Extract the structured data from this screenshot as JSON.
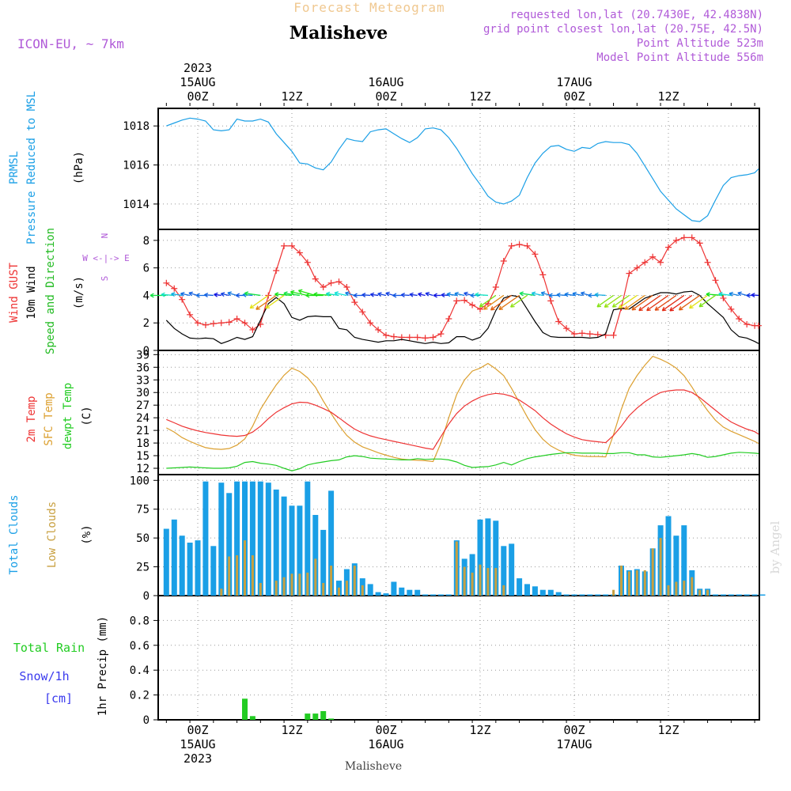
{
  "header": {
    "title_top": "Forecast Meteogram",
    "place": "Malisheve",
    "model": "ICON-EU, ~ 7km",
    "meta_lines": [
      "requested lon,lat (20.7430E, 42.4838N)",
      "grid point closest lon,lat (20.75E, 42.5N)",
      "Point Altitude 523m",
      "Model Point Altitude 556m"
    ],
    "bottom_label": "Malisheve",
    "watermark": "by Angel"
  },
  "time_axis": {
    "top_labels": [
      {
        "lines": [
          "2023",
          "15AUG",
          "00Z"
        ],
        "hour": 0
      },
      {
        "lines": [
          "12Z"
        ],
        "hour": 12
      },
      {
        "lines": [
          "16AUG",
          "00Z"
        ],
        "hour": 24
      },
      {
        "lines": [
          "12Z"
        ],
        "hour": 36
      },
      {
        "lines": [
          "17AUG",
          "00Z"
        ],
        "hour": 48
      },
      {
        "lines": [
          "12Z"
        ],
        "hour": 60
      }
    ],
    "bottom_labels": [
      {
        "lines": [
          "00Z",
          "15AUG",
          "2023"
        ],
        "hour": 0
      },
      {
        "lines": [
          "12Z"
        ],
        "hour": 12
      },
      {
        "lines": [
          "00Z",
          "16AUG"
        ],
        "hour": 24
      },
      {
        "lines": [
          "12Z"
        ],
        "hour": 36
      },
      {
        "lines": [
          "00Z",
          "17AUG"
        ],
        "hour": 48
      },
      {
        "lines": [
          "12Z"
        ],
        "hour": 60
      }
    ]
  },
  "colors": {
    "pressure": "#1a9fe6",
    "gust": "#ee3333",
    "wind": "#000000",
    "direction": "#22bb22",
    "temp2m": "#ee3333",
    "sfc": "#dca030",
    "dew": "#22cc22",
    "total_clouds": "#1a9fe6",
    "low_clouds": "#c8a040",
    "rain": "#22cc22",
    "snow": "#3a3aee",
    "meta": "#b05ad8",
    "title_top": "#f0c890",
    "watermark": "#d8d8d8"
  },
  "chart_data": [
    {
      "type": "line",
      "name": "pressure",
      "labels": [
        "PRMSL",
        "Pressure Reduced to MSL",
        "(hPa)"
      ],
      "y_ticks": [
        "1014",
        "1016",
        "1018"
      ],
      "ylim": [
        1012.7,
        1018.9
      ],
      "grid": true,
      "x": [
        -4,
        -3,
        -2,
        -1,
        0,
        1,
        2,
        3,
        4,
        5,
        6,
        7,
        8,
        9,
        10,
        11,
        12,
        13,
        14,
        15,
        16,
        17,
        18,
        19,
        20,
        21,
        22,
        23,
        24,
        25,
        26,
        27,
        28,
        29,
        30,
        31,
        32,
        33,
        34,
        35,
        36,
        37,
        38,
        39,
        40,
        41,
        42,
        43,
        44,
        45,
        46,
        47,
        48,
        49,
        50,
        51,
        52,
        53,
        54,
        55,
        56,
        57,
        58,
        59,
        60,
        61,
        62,
        63,
        64,
        65,
        66,
        67,
        68,
        69,
        70,
        71,
        72
      ],
      "series": [
        {
          "values": [
            1018.0,
            1018.15,
            1018.3,
            1018.4,
            1018.35,
            1018.25,
            1017.8,
            1017.75,
            1017.8,
            1018.35,
            1018.25,
            1018.25,
            1018.35,
            1018.2,
            1017.6,
            1017.15,
            1016.7,
            1016.1,
            1016.05,
            1015.85,
            1015.75,
            1016.15,
            1016.8,
            1017.35,
            1017.25,
            1017.2,
            1017.7,
            1017.8,
            1017.85,
            1017.6,
            1017.35,
            1017.15,
            1017.4,
            1017.85,
            1017.9,
            1017.8,
            1017.4,
            1016.85,
            1016.2,
            1015.55,
            1015.0,
            1014.4,
            1014.1,
            1014.0,
            1014.15,
            1014.45,
            1015.35,
            1016.1,
            1016.6,
            1016.95,
            1017.0,
            1016.8,
            1016.7,
            1016.9,
            1016.85,
            1017.1,
            1017.2,
            1017.15,
            1017.15,
            1017.05,
            1016.6,
            1015.95,
            1015.3,
            1014.65,
            1014.2,
            1013.75,
            1013.45,
            1013.15,
            1013.1,
            1013.4,
            1014.2,
            1014.95,
            1015.35,
            1015.45,
            1015.5,
            1015.6,
            1015.8
          ]
        }
      ]
    },
    {
      "type": "line",
      "name": "wind",
      "labels": [
        "Wind GUST",
        "10m Wind",
        "Speed and Direction",
        "(m/s)"
      ],
      "compass": [
        "N",
        "W <-|-> E",
        "S"
      ],
      "y_ticks": [
        "0",
        "2",
        "4",
        "6",
        "8"
      ],
      "ylim": [
        0,
        8.8
      ],
      "grid": true,
      "x": [
        -4,
        -3,
        -2,
        -1,
        0,
        1,
        2,
        3,
        4,
        5,
        6,
        7,
        8,
        9,
        10,
        11,
        12,
        13,
        14,
        15,
        16,
        17,
        18,
        19,
        20,
        21,
        22,
        23,
        24,
        25,
        26,
        27,
        28,
        29,
        30,
        31,
        32,
        33,
        34,
        35,
        36,
        37,
        38,
        39,
        40,
        41,
        42,
        43,
        44,
        45,
        46,
        47,
        48,
        49,
        50,
        51,
        52,
        53,
        54,
        55,
        56,
        57,
        58,
        59,
        60,
        61,
        62,
        63,
        64,
        65,
        66,
        67,
        68,
        69,
        70,
        71,
        72
      ],
      "series": [
        {
          "name": "Wind GUST",
          "values": [
            4.9,
            4.5,
            3.7,
            2.6,
            2.0,
            1.85,
            1.95,
            2.0,
            2.05,
            2.3,
            2.0,
            1.5,
            1.9,
            4.0,
            5.8,
            7.6,
            7.6,
            7.1,
            6.4,
            5.2,
            4.6,
            4.9,
            5.0,
            4.6,
            3.5,
            2.8,
            2.0,
            1.5,
            1.1,
            1.0,
            0.95,
            0.95,
            0.95,
            0.9,
            0.95,
            1.2,
            2.3,
            3.6,
            3.65,
            3.3,
            3.0,
            3.4,
            4.6,
            6.5,
            7.6,
            7.7,
            7.6,
            7.0,
            5.5,
            3.6,
            2.1,
            1.6,
            1.2,
            1.25,
            1.2,
            1.15,
            1.1,
            1.1,
            3.1,
            5.6,
            6.0,
            6.4,
            6.8,
            6.4,
            7.5,
            8.0,
            8.2,
            8.2,
            7.8,
            6.4,
            5.1,
            3.8,
            3.0,
            2.3,
            1.9,
            1.8,
            1.8
          ]
        },
        {
          "name": "10m Wind",
          "values": [
            2.2,
            1.6,
            1.2,
            0.9,
            0.85,
            0.9,
            0.85,
            0.5,
            0.7,
            0.95,
            0.8,
            1.0,
            2.2,
            3.4,
            3.85,
            3.4,
            2.4,
            2.2,
            2.45,
            2.5,
            2.45,
            2.45,
            1.6,
            1.5,
            0.95,
            0.8,
            0.7,
            0.6,
            0.7,
            0.7,
            0.8,
            0.7,
            0.6,
            0.5,
            0.6,
            0.5,
            0.55,
            1.0,
            1.0,
            0.75,
            0.95,
            1.6,
            2.9,
            3.8,
            4.0,
            3.9,
            3.0,
            2.1,
            1.3,
            1.0,
            0.95,
            0.95,
            0.95,
            0.95,
            0.9,
            0.95,
            1.2,
            2.95,
            3.05,
            3.0,
            3.4,
            3.8,
            4.0,
            4.2,
            4.2,
            4.1,
            4.25,
            4.3,
            4.0,
            3.4,
            2.9,
            2.4,
            1.5,
            1.0,
            0.9,
            0.65,
            0.5
          ]
        }
      ]
    },
    {
      "type": "line",
      "name": "temperature",
      "labels": [
        "2m Temp",
        "SFC Temp",
        "dewpt Temp",
        "(C)"
      ],
      "y_ticks": [
        "12",
        "15",
        "18",
        "21",
        "24",
        "27",
        "30",
        "33",
        "36",
        "39"
      ],
      "ylim": [
        10.5,
        40
      ],
      "grid": true,
      "x": [
        -4,
        -3,
        -2,
        -1,
        0,
        1,
        2,
        3,
        4,
        5,
        6,
        7,
        8,
        9,
        10,
        11,
        12,
        13,
        14,
        15,
        16,
        17,
        18,
        19,
        20,
        21,
        22,
        23,
        24,
        25,
        26,
        27,
        28,
        29,
        30,
        31,
        32,
        33,
        34,
        35,
        36,
        37,
        38,
        39,
        40,
        41,
        42,
        43,
        44,
        45,
        46,
        47,
        48,
        49,
        50,
        51,
        52,
        53,
        54,
        55,
        56,
        57,
        58,
        59,
        60,
        61,
        62,
        63,
        64,
        65,
        66,
        67,
        68,
        69,
        70,
        71,
        72
      ],
      "series": [
        {
          "name": "2m Temp",
          "values": [
            23.6,
            22.8,
            22.0,
            21.4,
            20.9,
            20.5,
            20.2,
            19.9,
            19.7,
            19.6,
            19.8,
            20.6,
            22.0,
            23.8,
            25.3,
            26.4,
            27.3,
            27.7,
            27.6,
            27.0,
            26.2,
            25.3,
            24.0,
            22.6,
            21.3,
            20.4,
            19.7,
            19.2,
            18.8,
            18.4,
            18.0,
            17.6,
            17.2,
            16.8,
            16.5,
            19.5,
            22.5,
            25.0,
            26.8,
            28.0,
            28.9,
            29.5,
            29.8,
            29.6,
            29.1,
            28.2,
            27.0,
            25.7,
            24.0,
            22.5,
            21.3,
            20.2,
            19.4,
            18.8,
            18.5,
            18.3,
            18.1,
            19.8,
            22.0,
            24.5,
            26.3,
            27.8,
            29.0,
            30.0,
            30.4,
            30.6,
            30.6,
            30.0,
            28.8,
            27.3,
            25.8,
            24.3,
            23.0,
            22.1,
            21.3,
            20.7,
            20.1
          ]
        },
        {
          "name": "SFC Temp",
          "values": [
            21.6,
            20.6,
            19.3,
            18.4,
            17.6,
            16.9,
            16.6,
            16.5,
            16.7,
            17.5,
            19.0,
            22.0,
            26.0,
            29.0,
            31.8,
            34.1,
            35.8,
            35.0,
            33.5,
            31.3,
            28.0,
            25.0,
            22.2,
            19.8,
            18.2,
            17.1,
            16.4,
            15.7,
            15.1,
            14.6,
            14.2,
            14.0,
            13.9,
            13.8,
            13.6,
            18.0,
            24.0,
            29.5,
            33.0,
            35.1,
            35.8,
            36.9,
            35.6,
            34.0,
            31.0,
            27.6,
            24.2,
            21.2,
            18.9,
            17.3,
            16.3,
            15.6,
            15.1,
            14.9,
            14.8,
            14.8,
            14.7,
            20.0,
            26.0,
            31.0,
            34.0,
            36.5,
            38.6,
            37.9,
            37.0,
            35.8,
            34.0,
            31.3,
            28.3,
            25.7,
            23.4,
            21.8,
            20.8,
            20.0,
            19.2,
            18.4,
            17.9
          ]
        },
        {
          "name": "dewpt Temp",
          "values": [
            12.0,
            12.1,
            12.2,
            12.3,
            12.2,
            12.1,
            12.0,
            12.0,
            12.1,
            12.5,
            13.4,
            13.6,
            13.2,
            13.0,
            12.7,
            12.0,
            11.4,
            11.9,
            12.8,
            13.2,
            13.5,
            13.8,
            14.0,
            14.7,
            15.0,
            14.8,
            14.4,
            14.3,
            14.2,
            14.1,
            14.0,
            14.0,
            14.3,
            14.1,
            14.2,
            14.2,
            14.0,
            13.5,
            12.7,
            12.2,
            12.3,
            12.4,
            12.8,
            13.4,
            12.8,
            13.6,
            14.3,
            14.7,
            15.0,
            15.3,
            15.5,
            15.7,
            15.7,
            15.6,
            15.6,
            15.6,
            15.5,
            15.5,
            15.7,
            15.7,
            15.2,
            15.2,
            14.7,
            14.6,
            14.8,
            15.0,
            15.2,
            15.5,
            15.2,
            14.6,
            14.8,
            15.2,
            15.6,
            15.8,
            15.7,
            15.6,
            15.5
          ]
        }
      ]
    },
    {
      "type": "bar",
      "name": "clouds",
      "labels": [
        "Total Clouds",
        "Low Clouds",
        "(%)"
      ],
      "y_ticks": [
        "0",
        "25",
        "50",
        "75",
        "100"
      ],
      "ylim": [
        0,
        105
      ],
      "grid": true,
      "x": [
        -4,
        -3,
        -2,
        -1,
        0,
        1,
        2,
        3,
        4,
        5,
        6,
        7,
        8,
        9,
        10,
        11,
        12,
        13,
        14,
        15,
        16,
        17,
        18,
        19,
        20,
        21,
        22,
        23,
        24,
        25,
        26,
        27,
        28,
        29,
        30,
        31,
        32,
        33,
        34,
        35,
        36,
        37,
        38,
        39,
        40,
        41,
        42,
        43,
        44,
        45,
        46,
        47,
        48,
        49,
        50,
        51,
        52,
        53,
        54,
        55,
        56,
        57,
        58,
        59,
        60,
        61,
        62,
        63,
        64,
        65,
        66,
        67,
        68,
        69,
        70,
        71,
        72
      ],
      "series": [
        {
          "name": "Total Clouds",
          "values": [
            58,
            66,
            52,
            46,
            48,
            99,
            43,
            98,
            89,
            99,
            99,
            99,
            99,
            98,
            92,
            86,
            78,
            78,
            99,
            70,
            57,
            91,
            13,
            23,
            28,
            15,
            10,
            3,
            2,
            12,
            7,
            5,
            5,
            1,
            1,
            1,
            1,
            48,
            32,
            36,
            66,
            67,
            65,
            43,
            45,
            15,
            10,
            8,
            5,
            5,
            3,
            1,
            1,
            1,
            1,
            1,
            1,
            1,
            26,
            22,
            23,
            21,
            41,
            61,
            69,
            52,
            61,
            22,
            6,
            6,
            1,
            1,
            1,
            1,
            1,
            1,
            1
          ]
        },
        {
          "name": "Low Clouds",
          "values": [
            0,
            0,
            0,
            0,
            0,
            0,
            0,
            6,
            34,
            35,
            48,
            35,
            11,
            0,
            13,
            16,
            19,
            19,
            20,
            32,
            11,
            26,
            7,
            13,
            26,
            9,
            0,
            0,
            0,
            0,
            0,
            0,
            0,
            0,
            0,
            0,
            0,
            47,
            25,
            20,
            27,
            24,
            24,
            9,
            0,
            0,
            0,
            0,
            0,
            0,
            0,
            0,
            0,
            0,
            0,
            0,
            0,
            5,
            26,
            21,
            22,
            22,
            41,
            50,
            9,
            12,
            13,
            16,
            5,
            5,
            0,
            0,
            0,
            0,
            0,
            0,
            0
          ]
        }
      ]
    },
    {
      "type": "bar",
      "name": "precip",
      "labels": [
        "Total Rain",
        "Snow/1h",
        "[cm]",
        "1hr Precip (mm)"
      ],
      "y_ticks": [
        "0",
        "0.2",
        "0.4",
        "0.6",
        "0.8"
      ],
      "ylim": [
        0,
        1.0
      ],
      "grid": true,
      "x": [
        6,
        7,
        14,
        15,
        16,
        17
      ],
      "series": [
        {
          "name": "Total Rain",
          "values": [
            0.17,
            0.03,
            0.05,
            0.05,
            0.07,
            0.01
          ]
        }
      ]
    }
  ]
}
